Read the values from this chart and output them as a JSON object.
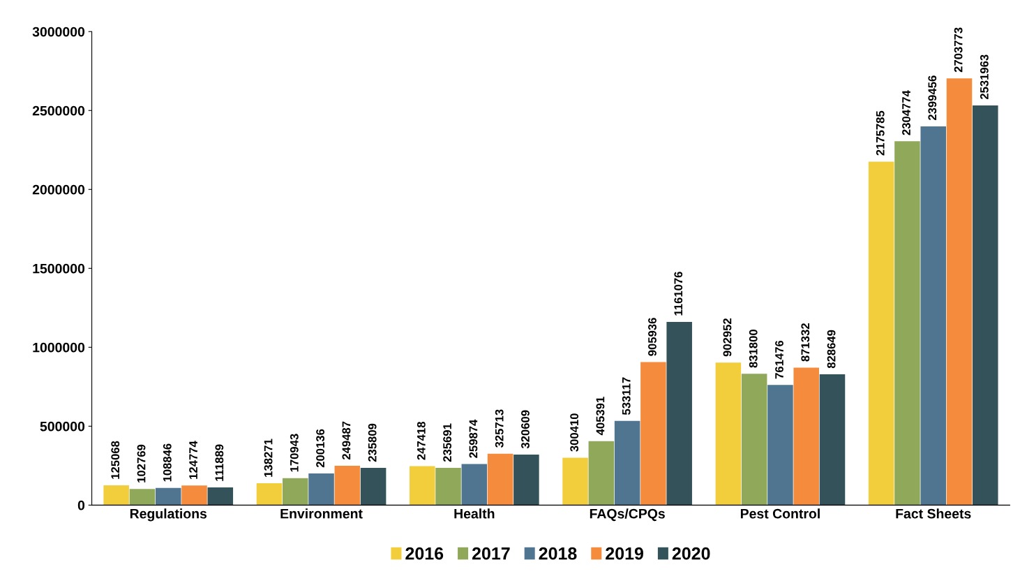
{
  "chart_data": {
    "type": "bar",
    "categories": [
      "Regulations",
      "Environment",
      "Health",
      "FAQs/CPQs",
      "Pest Control",
      "Fact Sheets"
    ],
    "series": [
      {
        "name": "2016",
        "color": "#f2cd3c",
        "values": [
          125068,
          138271,
          247418,
          300410,
          902952,
          2175785
        ]
      },
      {
        "name": "2017",
        "color": "#8fa85a",
        "values": [
          102769,
          170943,
          235691,
          405391,
          831800,
          2304774
        ]
      },
      {
        "name": "2018",
        "color": "#4f7590",
        "values": [
          108846,
          200136,
          259874,
          533117,
          761476,
          2399456
        ]
      },
      {
        "name": "2019",
        "color": "#f58b3c",
        "values": [
          124774,
          249487,
          325713,
          905936,
          871332,
          2703773
        ]
      },
      {
        "name": "2020",
        "color": "#34525a",
        "values": [
          111889,
          235809,
          320609,
          1161076,
          828649,
          2531963
        ]
      }
    ],
    "ylim": [
      0,
      3000000
    ],
    "yticks": [
      0,
      500000,
      1000000,
      1500000,
      2000000,
      2500000,
      3000000
    ],
    "data_labels": true,
    "legend": "bottom",
    "grid": false
  }
}
